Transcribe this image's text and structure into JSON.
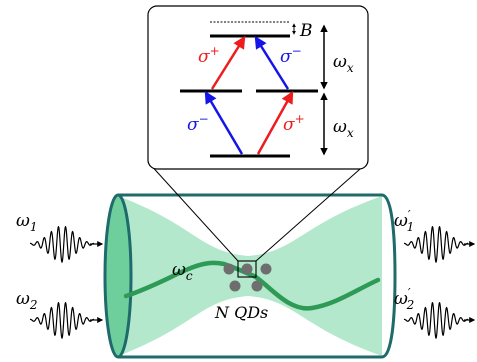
{
  "labels": {
    "B": "B",
    "sigma_plus_top": "σ+",
    "sigma_minus_top": "σ−",
    "sigma_minus_bottom": "σ−",
    "sigma_plus_bottom": "σ+",
    "omega_x_upper": "ωx",
    "omega_x_lower": "ωx",
    "omega_c": "ωc",
    "n_qds": "N QDs",
    "omega_1_in": "ω1",
    "omega_2_in": "ω2",
    "omega_1_out": "ω1′",
    "omega_2_out": "ω2′"
  },
  "colors": {
    "sigma_plus": "#ee1c1c",
    "sigma_minus": "#1515e8",
    "cavity_outline": "#1f6b6b",
    "cavity_fill": "#b3e8cc",
    "mode_line": "#2e9a55",
    "quantum_dot": "#6e6e6e"
  }
}
